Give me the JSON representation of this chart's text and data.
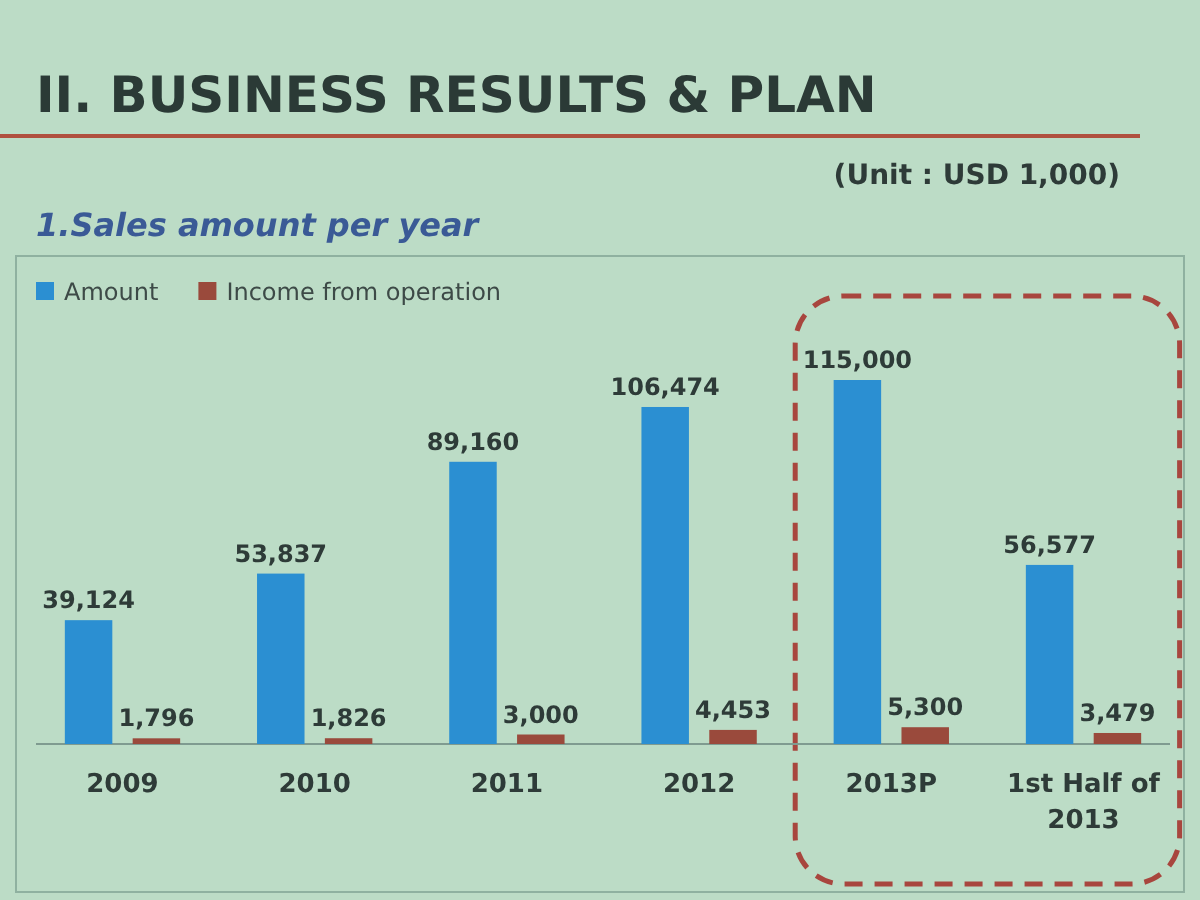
{
  "chart_data": {
    "type": "bar",
    "title": "II. BUSINESS RESULTS & PLAN",
    "subtitle": "1.Sales amount per year",
    "annotations": [
      "(Unit : USD 1,000)"
    ],
    "categories": [
      "2009",
      "2010",
      "2011",
      "2012",
      "2013P",
      "1st Half of 2013"
    ],
    "series": [
      {
        "name": "Amount",
        "color": "#2b8fd2",
        "values": [
          39124,
          53837,
          89160,
          106474,
          115000,
          56577
        ],
        "value_labels": [
          "39,124",
          "53,837",
          "89,160",
          "106,474",
          "115,000",
          "56,577"
        ]
      },
      {
        "name": "Income from operation",
        "color": "#9a4a3c",
        "values": [
          1796,
          1826,
          3000,
          4453,
          5300,
          3479
        ],
        "value_labels": [
          "1,796",
          "1,826",
          "3,000",
          "4,453",
          "5,300",
          "3,479"
        ]
      }
    ],
    "legend": "top left"
  }
}
